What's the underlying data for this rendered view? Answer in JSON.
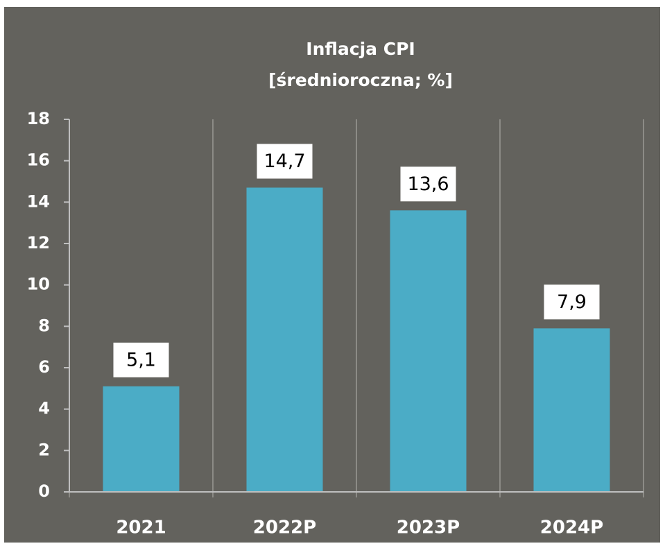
{
  "chart_data": {
    "type": "bar",
    "title": "Inflacja  CPI",
    "subtitle": "[średnioroczna; %]",
    "categories": [
      "2021",
      "2022P",
      "2023P",
      "2024P"
    ],
    "values": [
      5.1,
      14.7,
      13.6,
      7.9
    ],
    "value_labels": [
      "5,1",
      "14,7",
      "13,6",
      "7,9"
    ],
    "color": "#4bacc6",
    "ylim": [
      0,
      18
    ],
    "yticks": [
      0,
      2,
      4,
      6,
      8,
      10,
      12,
      14,
      16,
      18
    ]
  }
}
